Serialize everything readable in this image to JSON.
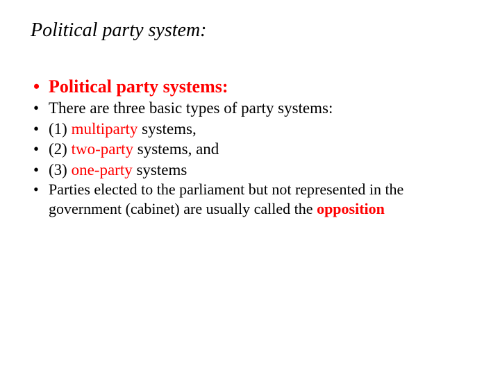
{
  "colors": {
    "text": "#000000",
    "highlight": "#ff0000",
    "background": "#ffffff"
  },
  "typography": {
    "family": "Times New Roman",
    "title_size_pt": 28,
    "title_style": "italic",
    "bullet_major_size_pt": 26,
    "bullet_body_size_pt": 23,
    "bullet_note_size_pt": 22
  },
  "title": "Political party system:",
  "bullets": {
    "heading": "Political party systems:",
    "intro": "There are three basic types of party systems:",
    "item1_prefix": "(1) ",
    "item1_hl": "multiparty",
    "item1_suffix": " systems,",
    "item2_prefix": "(2) ",
    "item2_hl": "two-party",
    "item2_suffix": " systems, and",
    "item3_prefix": "(3) ",
    "item3_hl": "one-party",
    "item3_suffix": " systems",
    "note_before": "Parties elected to the parliament but not represented in the government (cabinet) are usually called the ",
    "note_hl": "opposition"
  }
}
